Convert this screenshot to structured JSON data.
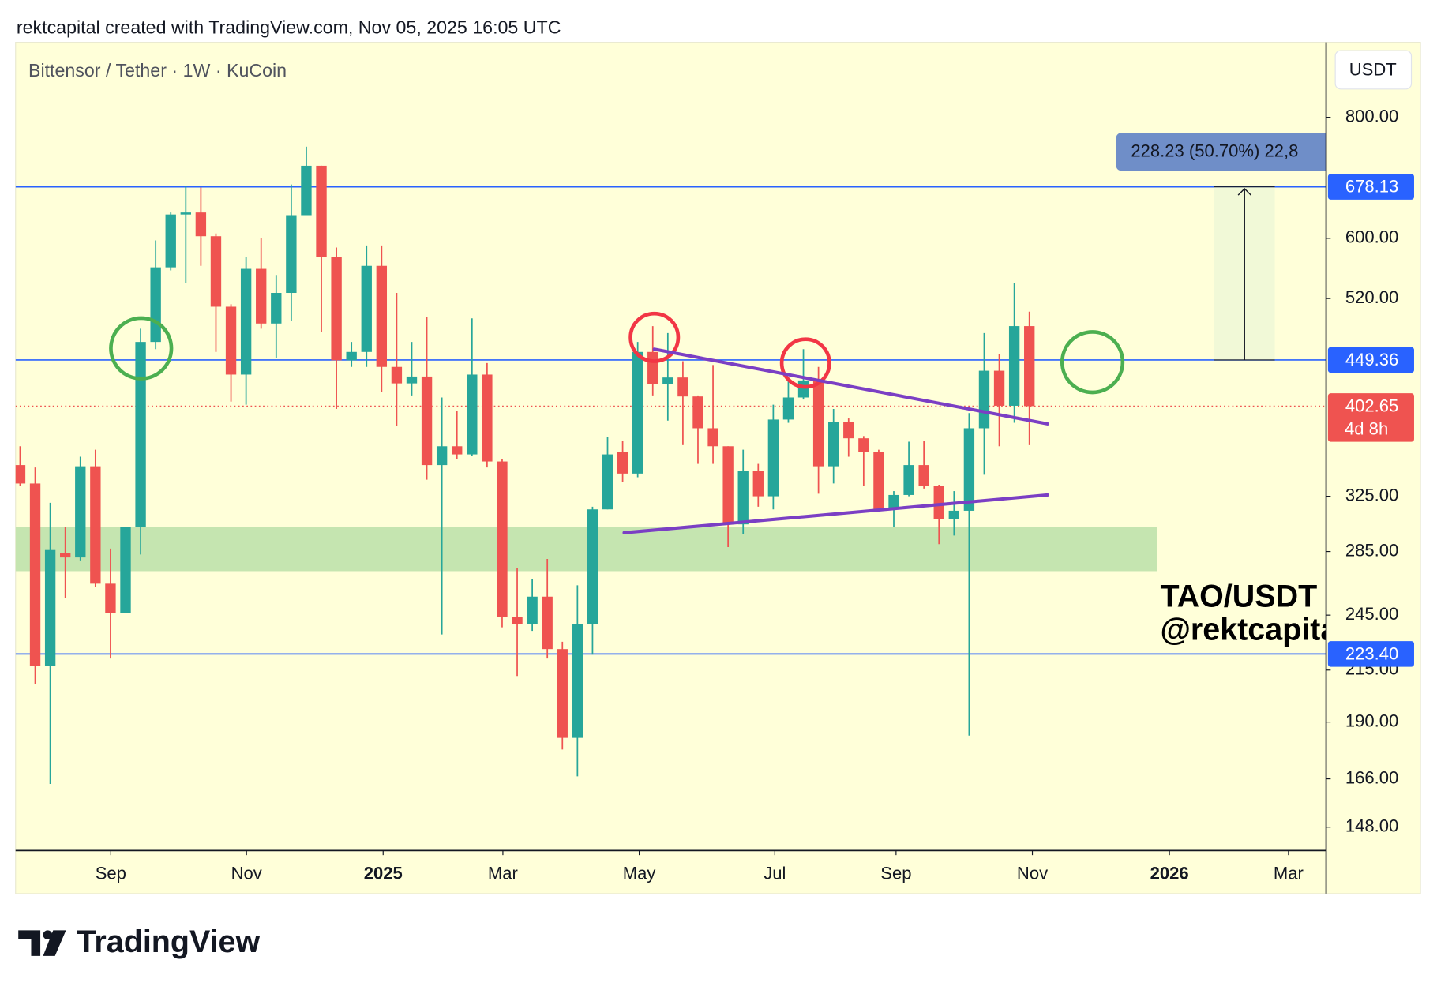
{
  "header": "rektcapital created with TradingView.com, Nov 05, 2025 16:05 UTC",
  "footer": {
    "brand": "TradingView"
  },
  "chart_data": {
    "type": "candlestick",
    "title": "Bittensor / Tether · 1W · KuCoin",
    "currency": "USDT",
    "watermark": [
      "TAO/USDT",
      "@rektcapita"
    ],
    "log_scale": true,
    "up_color": "#26a69a",
    "down_color": "#ef5350",
    "xlim": [
      -0.3,
      86.7
    ],
    "xticks": [
      {
        "value": 6.02,
        "label": "Sep"
      },
      {
        "value": 15.03,
        "label": "Nov"
      },
      {
        "value": 24.1,
        "label": "2025"
      },
      {
        "value": 32.05,
        "label": "Mar"
      },
      {
        "value": 41.1,
        "label": "May"
      },
      {
        "value": 50.1,
        "label": "Jul"
      },
      {
        "value": 58.15,
        "label": "Sep"
      },
      {
        "value": 67.2,
        "label": "Nov"
      },
      {
        "value": 76.3,
        "label": "2026"
      },
      {
        "value": 84.2,
        "label": "Mar"
      }
    ],
    "ylim": [
      140,
      954
    ],
    "yticks": [
      {
        "value": 800,
        "label": "800.00"
      },
      {
        "value": 600,
        "label": "600.00"
      },
      {
        "value": 520,
        "label": "520.00"
      },
      {
        "value": 325,
        "label": "325.00"
      },
      {
        "value": 285,
        "label": "285.00"
      },
      {
        "value": 245,
        "label": "245.00"
      },
      {
        "value": 215,
        "label": "215.00"
      },
      {
        "value": 190,
        "label": "190.00"
      },
      {
        "value": 166,
        "label": "166.00"
      },
      {
        "value": 148,
        "label": "148.00"
      }
    ],
    "ohlc": [
      [
        350,
        366,
        333,
        335
      ],
      [
        335,
        348,
        208,
        217
      ],
      [
        217,
        320,
        164,
        286
      ],
      [
        284,
        302,
        255,
        281
      ],
      [
        281,
        357,
        279,
        349
      ],
      [
        349,
        363,
        262,
        264
      ],
      [
        264,
        287,
        221,
        246
      ],
      [
        246,
        302,
        246,
        302
      ],
      [
        302,
        484,
        283,
        469
      ],
      [
        469,
        597,
        461,
        560
      ],
      [
        560,
        638,
        556,
        635
      ],
      [
        635,
        680,
        539,
        638
      ],
      [
        638,
        677,
        562,
        603
      ],
      [
        603,
        607,
        458,
        510
      ],
      [
        510,
        513,
        407,
        434
      ],
      [
        434,
        574,
        404,
        558
      ],
      [
        558,
        600,
        484,
        490
      ],
      [
        490,
        550,
        451,
        527
      ],
      [
        527,
        682,
        493,
        634
      ],
      [
        634,
        746,
        634,
        713
      ],
      [
        713,
        713,
        480,
        574
      ],
      [
        574,
        587,
        400,
        449
      ],
      [
        449,
        469,
        442,
        458
      ],
      [
        458,
        590,
        442,
        562
      ],
      [
        562,
        590,
        416,
        442
      ],
      [
        442,
        527,
        384,
        425
      ],
      [
        425,
        469,
        413,
        432
      ],
      [
        432,
        498,
        338,
        350
      ],
      [
        350,
        411,
        234,
        366
      ],
      [
        366,
        398,
        355,
        359
      ],
      [
        359,
        496,
        358,
        434
      ],
      [
        434,
        446,
        348,
        353
      ],
      [
        353,
        355,
        238,
        244
      ],
      [
        244,
        274,
        212,
        240
      ],
      [
        240,
        267,
        236,
        256
      ],
      [
        256,
        280,
        221,
        226
      ],
      [
        226,
        230,
        178,
        183
      ],
      [
        183,
        263,
        167,
        240
      ],
      [
        240,
        317,
        223,
        315
      ],
      [
        315,
        374,
        315,
        359
      ],
      [
        361,
        371,
        336,
        343
      ],
      [
        343,
        469,
        340,
        458
      ],
      [
        458,
        487,
        413,
        424
      ],
      [
        424,
        479,
        389,
        431
      ],
      [
        431,
        448,
        367,
        412
      ],
      [
        412,
        413,
        351,
        382
      ],
      [
        382,
        444,
        351,
        366
      ],
      [
        366,
        366,
        288,
        304
      ],
      [
        304,
        363,
        297,
        345
      ],
      [
        345,
        351,
        317,
        325
      ],
      [
        325,
        404,
        315,
        390
      ],
      [
        390,
        430,
        387,
        411
      ],
      [
        411,
        461,
        409,
        428
      ],
      [
        428,
        442,
        327,
        349
      ],
      [
        349,
        400,
        335,
        388
      ],
      [
        388,
        391,
        357,
        373
      ],
      [
        373,
        375,
        333,
        361
      ],
      [
        361,
        363,
        313,
        315
      ],
      [
        315,
        329,
        302,
        326
      ],
      [
        326,
        370,
        325,
        350
      ],
      [
        350,
        371,
        331,
        333
      ],
      [
        333,
        334,
        290,
        308
      ],
      [
        308,
        329,
        296,
        314
      ],
      [
        314,
        396,
        184,
        382
      ],
      [
        382,
        479,
        342,
        438
      ],
      [
        438,
        456,
        366,
        403
      ],
      [
        403,
        540,
        387,
        487
      ],
      [
        487,
        504,
        367,
        402.65
      ]
    ],
    "hlines": [
      {
        "value": 678.13,
        "label": "678.13"
      },
      {
        "value": 449.36,
        "label": "449.36"
      },
      {
        "value": 223.4,
        "label": "223.40"
      }
    ],
    "hline_color": "#2962ff",
    "last_price": {
      "value": 402.65,
      "label": "402.65",
      "countdown": "4d 8h"
    },
    "support_zone": {
      "low": 272,
      "high": 302,
      "x": [
        -0.3,
        75.5
      ],
      "color": "#c5e5b0"
    },
    "trendlines": [
      {
        "x": [
          42.1,
          68.2
        ],
        "y": [
          461,
          386
        ]
      },
      {
        "x": [
          40.1,
          68.2
        ],
        "y": [
          298,
          326
        ]
      }
    ],
    "trendline_color": "#7b3fc4",
    "measure_label": "228.23 (50.70%) 22,8"
  }
}
